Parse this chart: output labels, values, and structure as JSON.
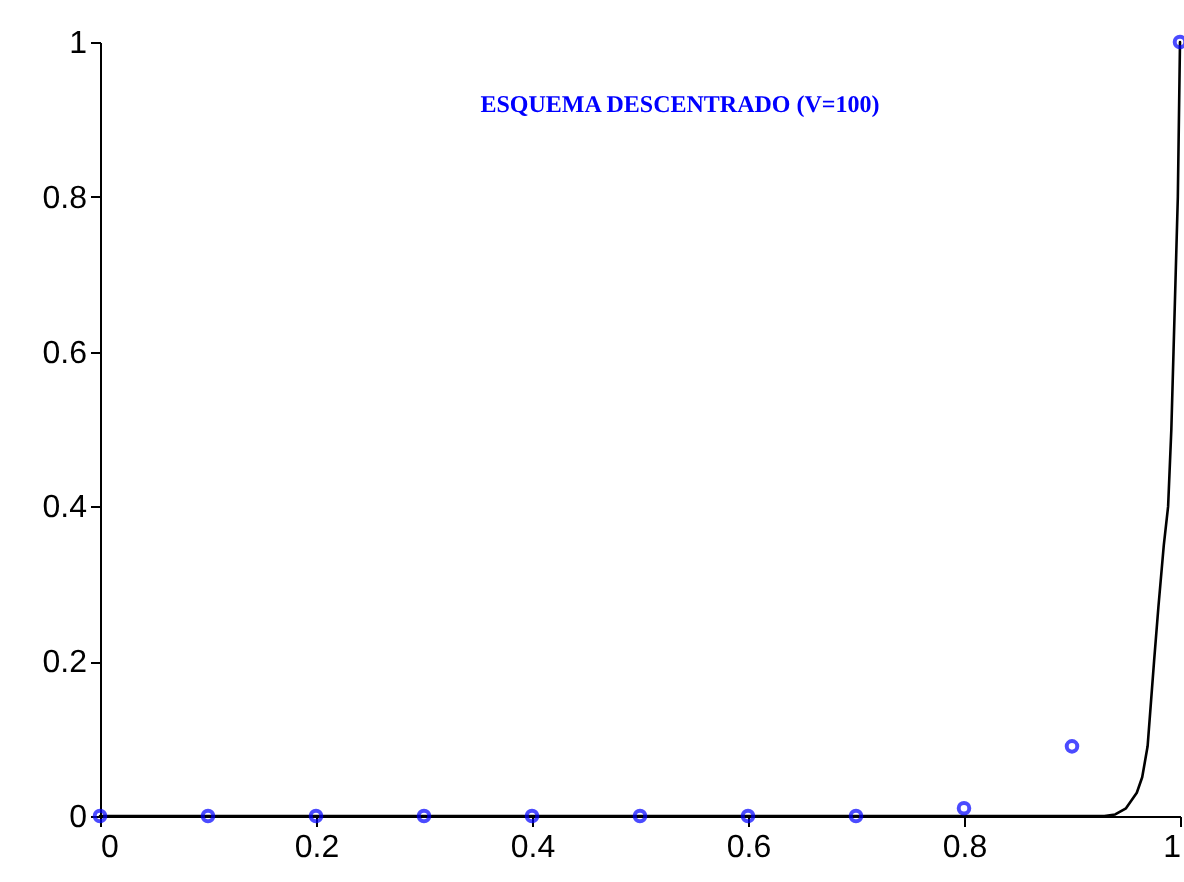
{
  "chart_data": {
    "type": "scatter",
    "title": "ESQUEMA DESCENTRADO (V=100)",
    "xlim": [
      0,
      1
    ],
    "xticks": [
      0,
      0.2,
      0.4,
      0.6,
      0.8,
      1
    ],
    "ylim": [
      0,
      1
    ],
    "yticks": [
      0,
      0.2,
      0.4,
      0.6,
      0.8,
      1
    ],
    "grid": false,
    "series": [
      {
        "type": "line",
        "color": "#000000",
        "x": [
          0,
          0.5,
          0.93,
          0.94,
          0.95,
          0.96,
          0.965,
          0.97,
          0.976,
          0.98,
          0.985,
          0.989,
          0.992,
          0.994,
          0.996,
          0.998,
          1
        ],
        "values": [
          0,
          0,
          0,
          0.002,
          0.01,
          0.03,
          0.05,
          0.09,
          0.2,
          0.27,
          0.35,
          0.4,
          0.5,
          0.6,
          0.7,
          0.8,
          1
        ]
      },
      {
        "color": "#0000ff",
        "marker": "circle",
        "x": [
          0,
          0.1,
          0.2,
          0.3,
          0.4,
          0.5,
          0.6,
          0.7,
          0.8,
          0.9,
          1
        ],
        "values": [
          0,
          0,
          0,
          0,
          0,
          0,
          0,
          0,
          0.01,
          0.09,
          1
        ]
      }
    ]
  }
}
